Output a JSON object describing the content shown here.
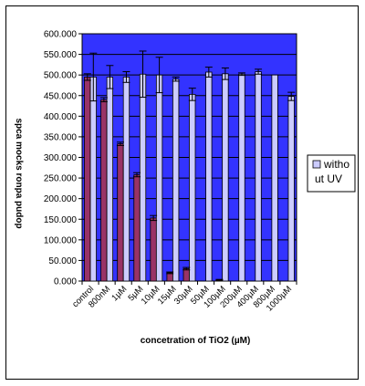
{
  "chart_data": {
    "type": "bar",
    "title": "",
    "xlabel": "concetration of TiO2 (µM)",
    "ylabel": "spca mocks ronpa pudop",
    "ylim": [
      0,
      600
    ],
    "ytick_step": 50,
    "ytick_labels": [
      "0.000",
      "50.000",
      "100.000",
      "150.000",
      "200.000",
      "250.000",
      "300.000",
      "350.000",
      "400.000",
      "450.000",
      "500.000",
      "550.000",
      "600.000"
    ],
    "categories": [
      "control",
      "800nM",
      "1µM",
      "5µM",
      "10µM",
      "15µM",
      "30µM",
      "50µM",
      "100µM",
      "200µM",
      "400µM",
      "800µM",
      "1000µM"
    ],
    "legend": {
      "position": "right",
      "entries": [
        "witho ut UV"
      ]
    },
    "grid": true,
    "colors": {
      "plot_bg": "#3333ff",
      "series_with_uv": "#993366",
      "series_without_uv": "#ccccff",
      "grid": "#000000"
    },
    "series": [
      {
        "name": "",
        "values": [
          495,
          440,
          333,
          258,
          153,
          20,
          30,
          0,
          3,
          0,
          0,
          0,
          0
        ],
        "errors": [
          8,
          5,
          4,
          5,
          6,
          2,
          3,
          0,
          1,
          0,
          0,
          0,
          0
        ]
      },
      {
        "name": "witho ut UV",
        "values": [
          495,
          495,
          495,
          502,
          500,
          490,
          453,
          507,
          503,
          502,
          508,
          500,
          448
        ],
        "errors": [
          58,
          28,
          13,
          56,
          43,
          5,
          15,
          12,
          14,
          3,
          6,
          0,
          10
        ]
      }
    ]
  }
}
